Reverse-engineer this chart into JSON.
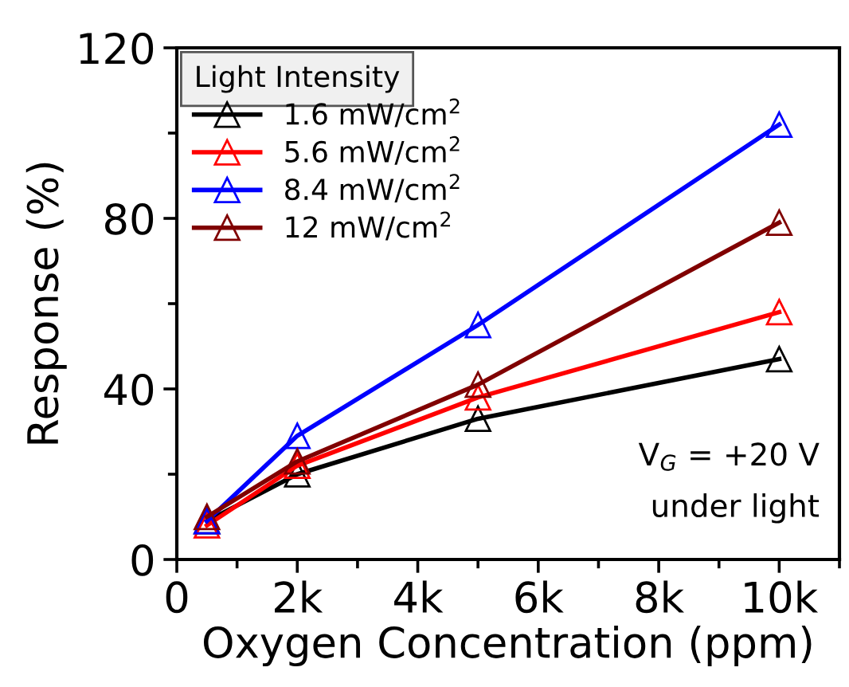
{
  "chart_data": {
    "type": "line",
    "xlabel": "Oxygen Concentration (ppm)",
    "ylabel": "Response (%)",
    "legend_title": "Light Intensity",
    "x": [
      500,
      2000,
      5000,
      10000
    ],
    "series": [
      {
        "name": "1.6 mW/cm$^{2}$",
        "color": "#000000",
        "values": [
          9,
          20,
          33,
          47
        ]
      },
      {
        "name": "5.6 mW/cm$^{2}$",
        "color": "#ff0000",
        "values": [
          8,
          22,
          38,
          58
        ]
      },
      {
        "name": "8.4 mW/cm$^{2}$",
        "color": "#0000ff",
        "values": [
          9,
          29,
          55,
          102
        ]
      },
      {
        "name": "12 mW/cm$^{2}$",
        "color": "#800000",
        "values": [
          10,
          23,
          41,
          79
        ]
      }
    ],
    "xlim": [
      0,
      11000
    ],
    "xticks": [
      {
        "value": 0,
        "label": "0"
      },
      {
        "value": 2000,
        "label": "2k"
      },
      {
        "value": 4000,
        "label": "4k"
      },
      {
        "value": 6000,
        "label": "6k"
      },
      {
        "value": 8000,
        "label": "8k"
      },
      {
        "value": 10000,
        "label": "10k"
      }
    ],
    "ylim": [
      0,
      120
    ],
    "yticks": [
      0,
      40,
      80,
      120
    ],
    "annotations": [
      "V$_{G}$ = +20 V",
      "under light"
    ],
    "legend": "top left",
    "marker": "triangle",
    "line_style": "solid",
    "grid": false
  }
}
